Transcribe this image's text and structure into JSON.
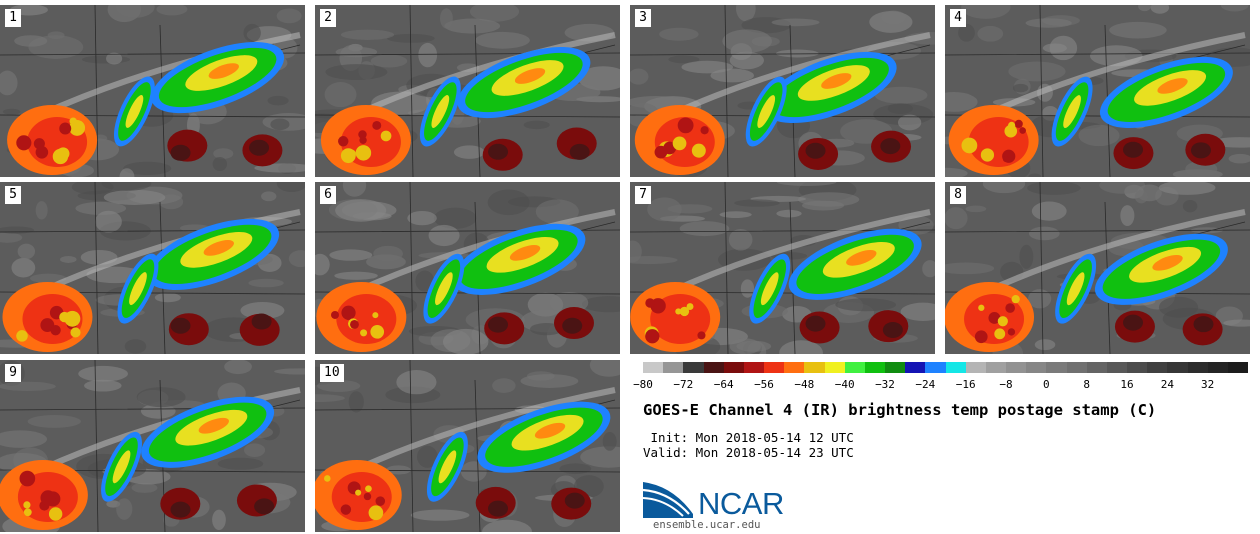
{
  "panels": [
    {
      "label": "1"
    },
    {
      "label": "2"
    },
    {
      "label": "3"
    },
    {
      "label": "4"
    },
    {
      "label": "5"
    },
    {
      "label": "6"
    },
    {
      "label": "7"
    },
    {
      "label": "8"
    },
    {
      "label": "9"
    },
    {
      "label": "10"
    }
  ],
  "colorbar": {
    "min": -80,
    "max": 40,
    "step": 4,
    "tick_labels": [
      "−80",
      "−72",
      "−64",
      "−56",
      "−48",
      "−40",
      "−32",
      "−24",
      "−16",
      "−8",
      "0",
      "8",
      "16",
      "24",
      "32"
    ],
    "colors": [
      "#c8c8c8",
      "#969696",
      "#3a3a3a",
      "#4a1414",
      "#7a0c0c",
      "#b01414",
      "#ee3214",
      "#ff6e10",
      "#e8c010",
      "#f0f020",
      "#40f040",
      "#10c010",
      "#108c10",
      "#1414b4",
      "#1e82ff",
      "#14e6e6",
      "#b4b4b4",
      "#a0a0a0",
      "#929292",
      "#868686",
      "#7a7a7a",
      "#707070",
      "#646464",
      "#585858",
      "#4c4c4c",
      "#404040",
      "#363636",
      "#2c2c2c",
      "#242424",
      "#1c1c1c"
    ]
  },
  "title": "GOES-E Channel 4 (IR) brightness temp postage stamp (C)",
  "init": " Init: Mon 2018-05-14 12 UTC",
  "valid": "Valid: Mon 2018-05-14 23 UTC",
  "logo": {
    "text": "NCAR",
    "url": "ensemble.ucar.edu"
  }
}
